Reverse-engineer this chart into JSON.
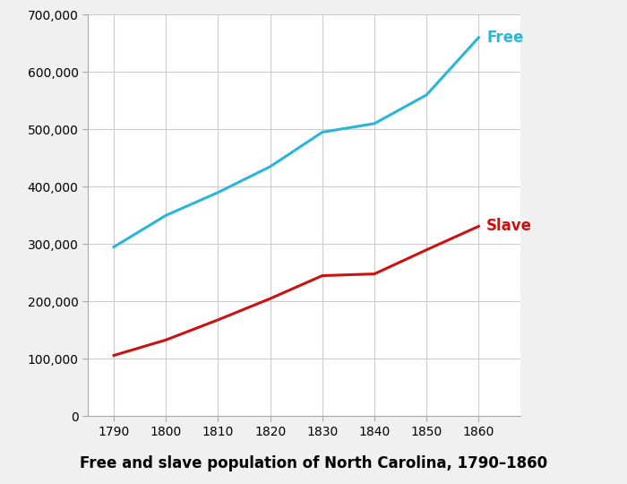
{
  "years": [
    1790,
    1800,
    1810,
    1820,
    1830,
    1840,
    1850,
    1860
  ],
  "free": [
    295000,
    350000,
    390000,
    435000,
    495000,
    510000,
    560000,
    660000
  ],
  "slave": [
    106000,
    133000,
    168000,
    205000,
    245000,
    248000,
    290000,
    331000
  ],
  "free_color": "#29b6d8",
  "slave_color": "#cc1111",
  "free_label": "Free",
  "slave_label": "Slave",
  "free_label_color": "#29b6d8",
  "slave_label_color": "#cc1111",
  "title": "Free and slave population of North Carolina, 1790–1860",
  "ylim": [
    0,
    700000
  ],
  "yticks": [
    0,
    100000,
    200000,
    300000,
    400000,
    500000,
    600000,
    700000
  ],
  "xlim": [
    1785,
    1868
  ],
  "xticks": [
    1790,
    1800,
    1810,
    1820,
    1830,
    1840,
    1850,
    1860
  ],
  "line_width": 2.2,
  "plot_bg_color": "#ffffff",
  "fig_bg_color": "#f0f0f0",
  "grid_color": "#cccccc",
  "title_fontsize": 12,
  "label_fontsize": 12,
  "tick_fontsize": 10
}
